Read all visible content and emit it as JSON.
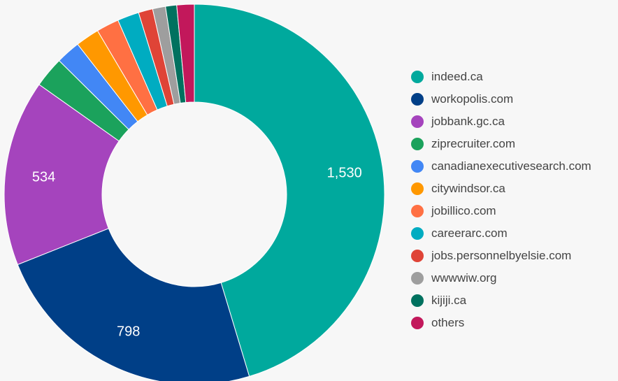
{
  "chart_data": {
    "type": "pie",
    "donut": true,
    "title": "",
    "legend_position": "right",
    "slices": [
      {
        "label": "indeed.ca",
        "value": 1530,
        "value_label": "1,530",
        "color": "#00a99d"
      },
      {
        "label": "workopolis.com",
        "value": 798,
        "value_label": "798",
        "color": "#003f87"
      },
      {
        "label": "jobbank.gc.ca",
        "value": 534,
        "value_label": "534",
        "color": "#a544bd"
      },
      {
        "label": "ziprecruiter.com",
        "value": 88,
        "value_label": "",
        "color": "#1ba25c"
      },
      {
        "label": "canadianexecutivesearch.com",
        "value": 70,
        "value_label": "",
        "color": "#4287f5"
      },
      {
        "label": "citywindsor.ca",
        "value": 68,
        "value_label": "",
        "color": "#ff9800"
      },
      {
        "label": "jobillico.com",
        "value": 65,
        "value_label": "",
        "color": "#ff7043"
      },
      {
        "label": "careerarc.com",
        "value": 62,
        "value_label": "",
        "color": "#00acc1"
      },
      {
        "label": "jobs.personnelbyelsie.com",
        "value": 41,
        "value_label": "",
        "color": "#df4437"
      },
      {
        "label": "wwwwiw.org",
        "value": 37,
        "value_label": "",
        "color": "#9e9e9e"
      },
      {
        "label": "kijiji.ca",
        "value": 32,
        "value_label": "",
        "color": "#00715f"
      },
      {
        "label": "others",
        "value": 50,
        "value_label": "",
        "color": "#c2185b"
      }
    ]
  }
}
